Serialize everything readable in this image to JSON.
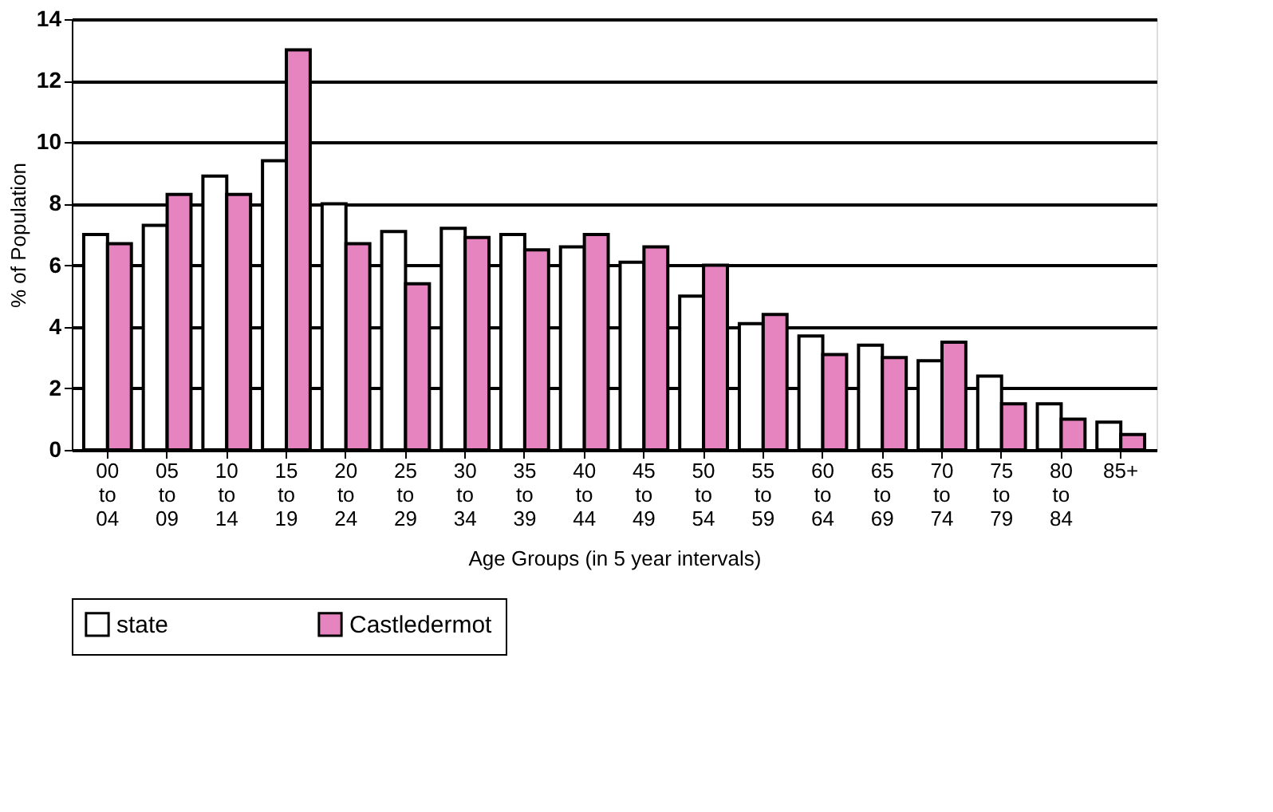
{
  "chart_data": {
    "type": "bar",
    "xlabel": "Age Groups (in 5 year intervals)",
    "ylabel": "% of Population",
    "categories": [
      "00 to 04",
      "05 to 09",
      "10 to 14",
      "15 to 19",
      "20 to 24",
      "25 to 29",
      "30 to 34",
      "35 to 39",
      "40 to 44",
      "45 to 49",
      "50 to 54",
      "55 to 59",
      "60 to 64",
      "65 to 69",
      "70 to 74",
      "75 to 79",
      "80 to 84",
      "85+"
    ],
    "series": [
      {
        "name": "state",
        "color": "#ffffff",
        "values": [
          7.0,
          7.3,
          8.9,
          9.4,
          8.0,
          7.1,
          7.2,
          7.0,
          6.6,
          6.1,
          5.0,
          4.1,
          3.7,
          3.4,
          2.9,
          2.4,
          1.5,
          0.9
        ]
      },
      {
        "name": "Castledermot",
        "color": "#e684c0",
        "values": [
          6.7,
          8.3,
          8.3,
          13.0,
          6.7,
          5.4,
          6.9,
          6.5,
          7.0,
          6.6,
          6.0,
          4.4,
          3.1,
          3.0,
          3.5,
          1.5,
          1.0,
          0.5
        ]
      }
    ],
    "ylim": [
      0,
      14
    ],
    "yticks": [
      0,
      2,
      4,
      6,
      8,
      10,
      12,
      14
    ],
    "grid": "y",
    "legend": "bottom"
  }
}
